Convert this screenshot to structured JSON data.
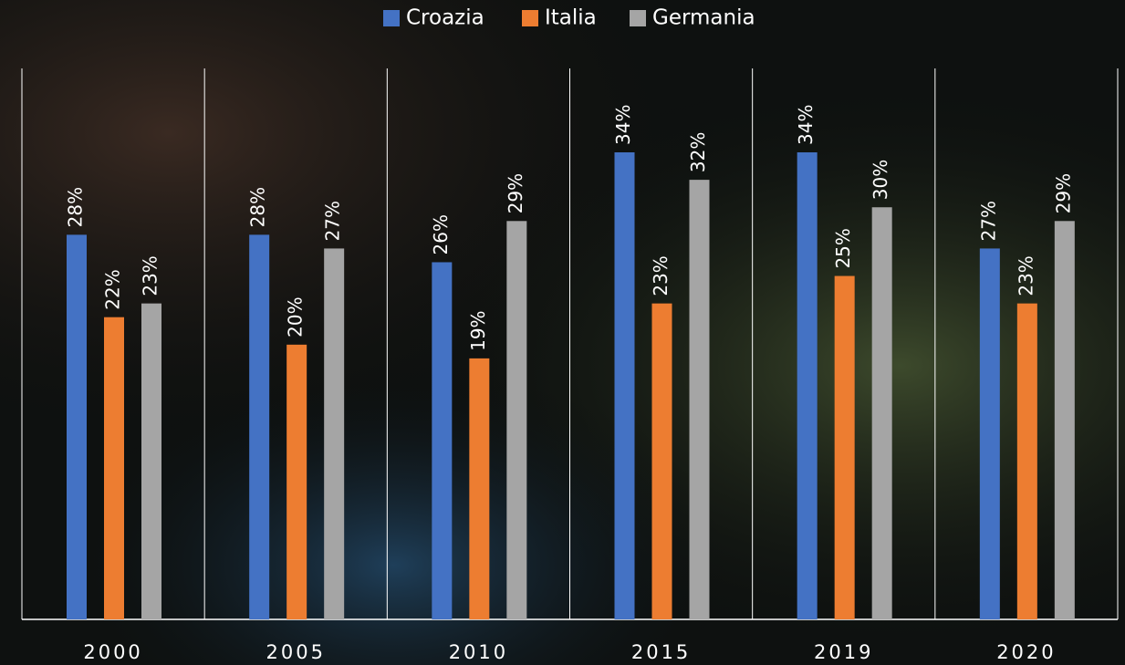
{
  "chart_data": {
    "type": "bar",
    "categories": [
      "2000",
      "2005",
      "2010",
      "2015",
      "2019",
      "2020"
    ],
    "series": [
      {
        "name": "Croazia",
        "color": "#4472c4",
        "values": [
          28,
          28,
          26,
          34,
          34,
          27
        ],
        "value_labels": [
          "28%",
          "28%",
          "26%",
          "34%",
          "34%",
          "27%"
        ]
      },
      {
        "name": "Italia",
        "color": "#ed7d31",
        "values": [
          22,
          20,
          19,
          23,
          25,
          23
        ],
        "value_labels": [
          "22%",
          "20%",
          "19%",
          "23%",
          "25%",
          "23%"
        ]
      },
      {
        "name": "Germania",
        "color": "#a5a5a5",
        "values": [
          23,
          27,
          29,
          32,
          30,
          29
        ],
        "value_labels": [
          "23%",
          "27%",
          "29%",
          "32%",
          "30%",
          "29%"
        ]
      }
    ],
    "legend": "top"
  }
}
